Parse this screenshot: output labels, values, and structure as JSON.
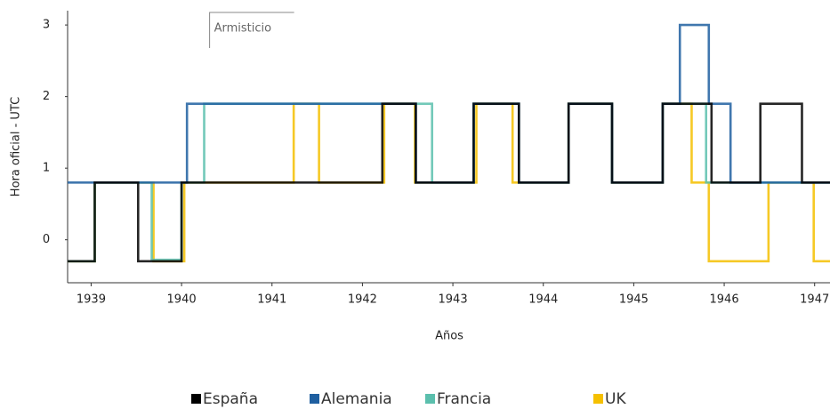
{
  "chart_data": {
    "type": "step",
    "x_label": "Años",
    "y_label": "Hora oficial - UTC",
    "xlim": [
      1938.74,
      1947.17
    ],
    "ylim": [
      -0.6,
      3.2
    ],
    "xticks": [
      1939,
      1940,
      1941,
      1942,
      1943,
      1944,
      1945,
      1946,
      1947
    ],
    "yticks": [
      0,
      1,
      2,
      3
    ],
    "annotation": {
      "text": "Armisticio",
      "x": 1940.31
    },
    "series": [
      {
        "name": "UK",
        "color": "#f5c000",
        "x": [
          1938.74,
          1939.04,
          1939.69,
          1940.03,
          1941.24,
          1941.52,
          1942.24,
          1942.58,
          1943.26,
          1943.66,
          1944.28,
          1944.76,
          1945.32,
          1945.64,
          1945.83,
          1946.49,
          1946.99
        ],
        "values": [
          -0.3,
          0.8,
          -0.3,
          0.8,
          1.9,
          0.8,
          1.9,
          0.8,
          1.9,
          0.8,
          1.9,
          0.8,
          1.9,
          0.8,
          -0.3,
          0.8,
          -0.3
        ]
      },
      {
        "name": "Francia",
        "color": "#5bbfad",
        "x": [
          1938.74,
          1939.04,
          1939.67,
          1940.0,
          1940.25,
          1942.77,
          1943.23,
          1943.73,
          1944.28,
          1944.76,
          1945.32,
          1945.8
        ],
        "values": [
          -0.3,
          0.8,
          -0.28,
          0.8,
          1.9,
          0.8,
          1.9,
          0.8,
          1.9,
          0.8,
          1.9,
          0.8
        ]
      },
      {
        "name": "Alemania",
        "color": "#1f5fa0",
        "x": [
          1938.74,
          1940.06,
          1942.59,
          1943.23,
          1943.73,
          1944.28,
          1944.76,
          1945.32,
          1945.51,
          1945.83,
          1946.07
        ],
        "values": [
          0.8,
          1.9,
          0.8,
          1.9,
          0.8,
          1.9,
          0.8,
          1.9,
          3.0,
          1.9,
          0.8
        ]
      },
      {
        "name": "España",
        "color": "#000000",
        "x": [
          1938.74,
          1939.04,
          1939.52,
          1940.0,
          1942.22,
          1942.59,
          1943.23,
          1943.73,
          1944.28,
          1944.76,
          1945.32,
          1945.86,
          1946.4,
          1946.86
        ],
        "values": [
          -0.3,
          0.8,
          -0.3,
          0.8,
          1.9,
          0.8,
          1.9,
          0.8,
          1.9,
          0.8,
          1.9,
          0.8,
          1.9,
          0.8
        ]
      }
    ]
  }
}
